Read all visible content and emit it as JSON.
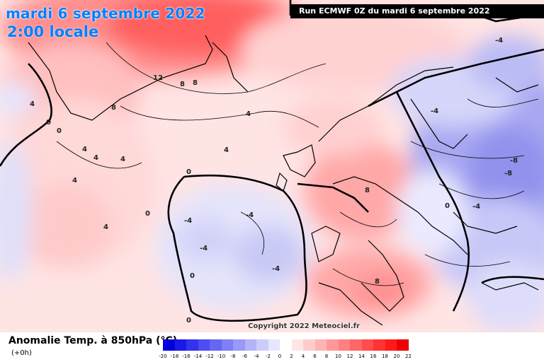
{
  "title": {
    "date": "mardi 6 septembre 2022",
    "time": "2:00 locale"
  },
  "run_banner": "Run ECMWF 0Z du mardi 6 septembre 2022",
  "copyright": "Copyright 2022 Meteociel.fr",
  "parameter_label": "Anomalie Temp. à 850hPa (°C)",
  "forecast_step": "(+0h)",
  "colorbar": {
    "ticks": [
      "-20",
      "-18",
      "-16",
      "-14",
      "-12",
      "-10",
      "-8",
      "-6",
      "-4",
      "-2",
      "0",
      "2",
      "4",
      "6",
      "8",
      "10",
      "12",
      "14",
      "16",
      "18",
      "20",
      "22"
    ],
    "colors": [
      "#0000dc",
      "#1a1ae6",
      "#3333ee",
      "#4d4df2",
      "#6666f4",
      "#7f7ff6",
      "#9999f8",
      "#b3b3fa",
      "#ccccfc",
      "#e6e6fe",
      "#ffffff",
      "#ffe6e6",
      "#ffcccc",
      "#ffb3b3",
      "#ff9999",
      "#ff8080",
      "#ff6666",
      "#ff4d4d",
      "#ff3333",
      "#ff1a1a",
      "#f00000"
    ]
  },
  "contour_labels": [
    {
      "text": "12"
    },
    {
      "text": "8"
    },
    {
      "text": "8"
    },
    {
      "text": "8"
    },
    {
      "text": "4"
    },
    {
      "text": "0"
    },
    {
      "text": "4"
    },
    {
      "text": "4"
    },
    {
      "text": "4"
    },
    {
      "text": "4"
    },
    {
      "text": "0"
    },
    {
      "text": "-4"
    },
    {
      "text": "-4"
    },
    {
      "text": "-4"
    },
    {
      "text": "-4"
    },
    {
      "text": "0"
    },
    {
      "text": "0"
    },
    {
      "text": "-8"
    },
    {
      "text": "-8"
    },
    {
      "text": "-4"
    },
    {
      "text": "-4"
    },
    {
      "text": "8"
    },
    {
      "text": "8"
    },
    {
      "text": "4"
    },
    {
      "text": "0"
    },
    {
      "text": "0"
    },
    {
      "text": "4"
    },
    {
      "text": "-4"
    },
    {
      "text": "4"
    },
    {
      "text": "0"
    }
  ]
}
